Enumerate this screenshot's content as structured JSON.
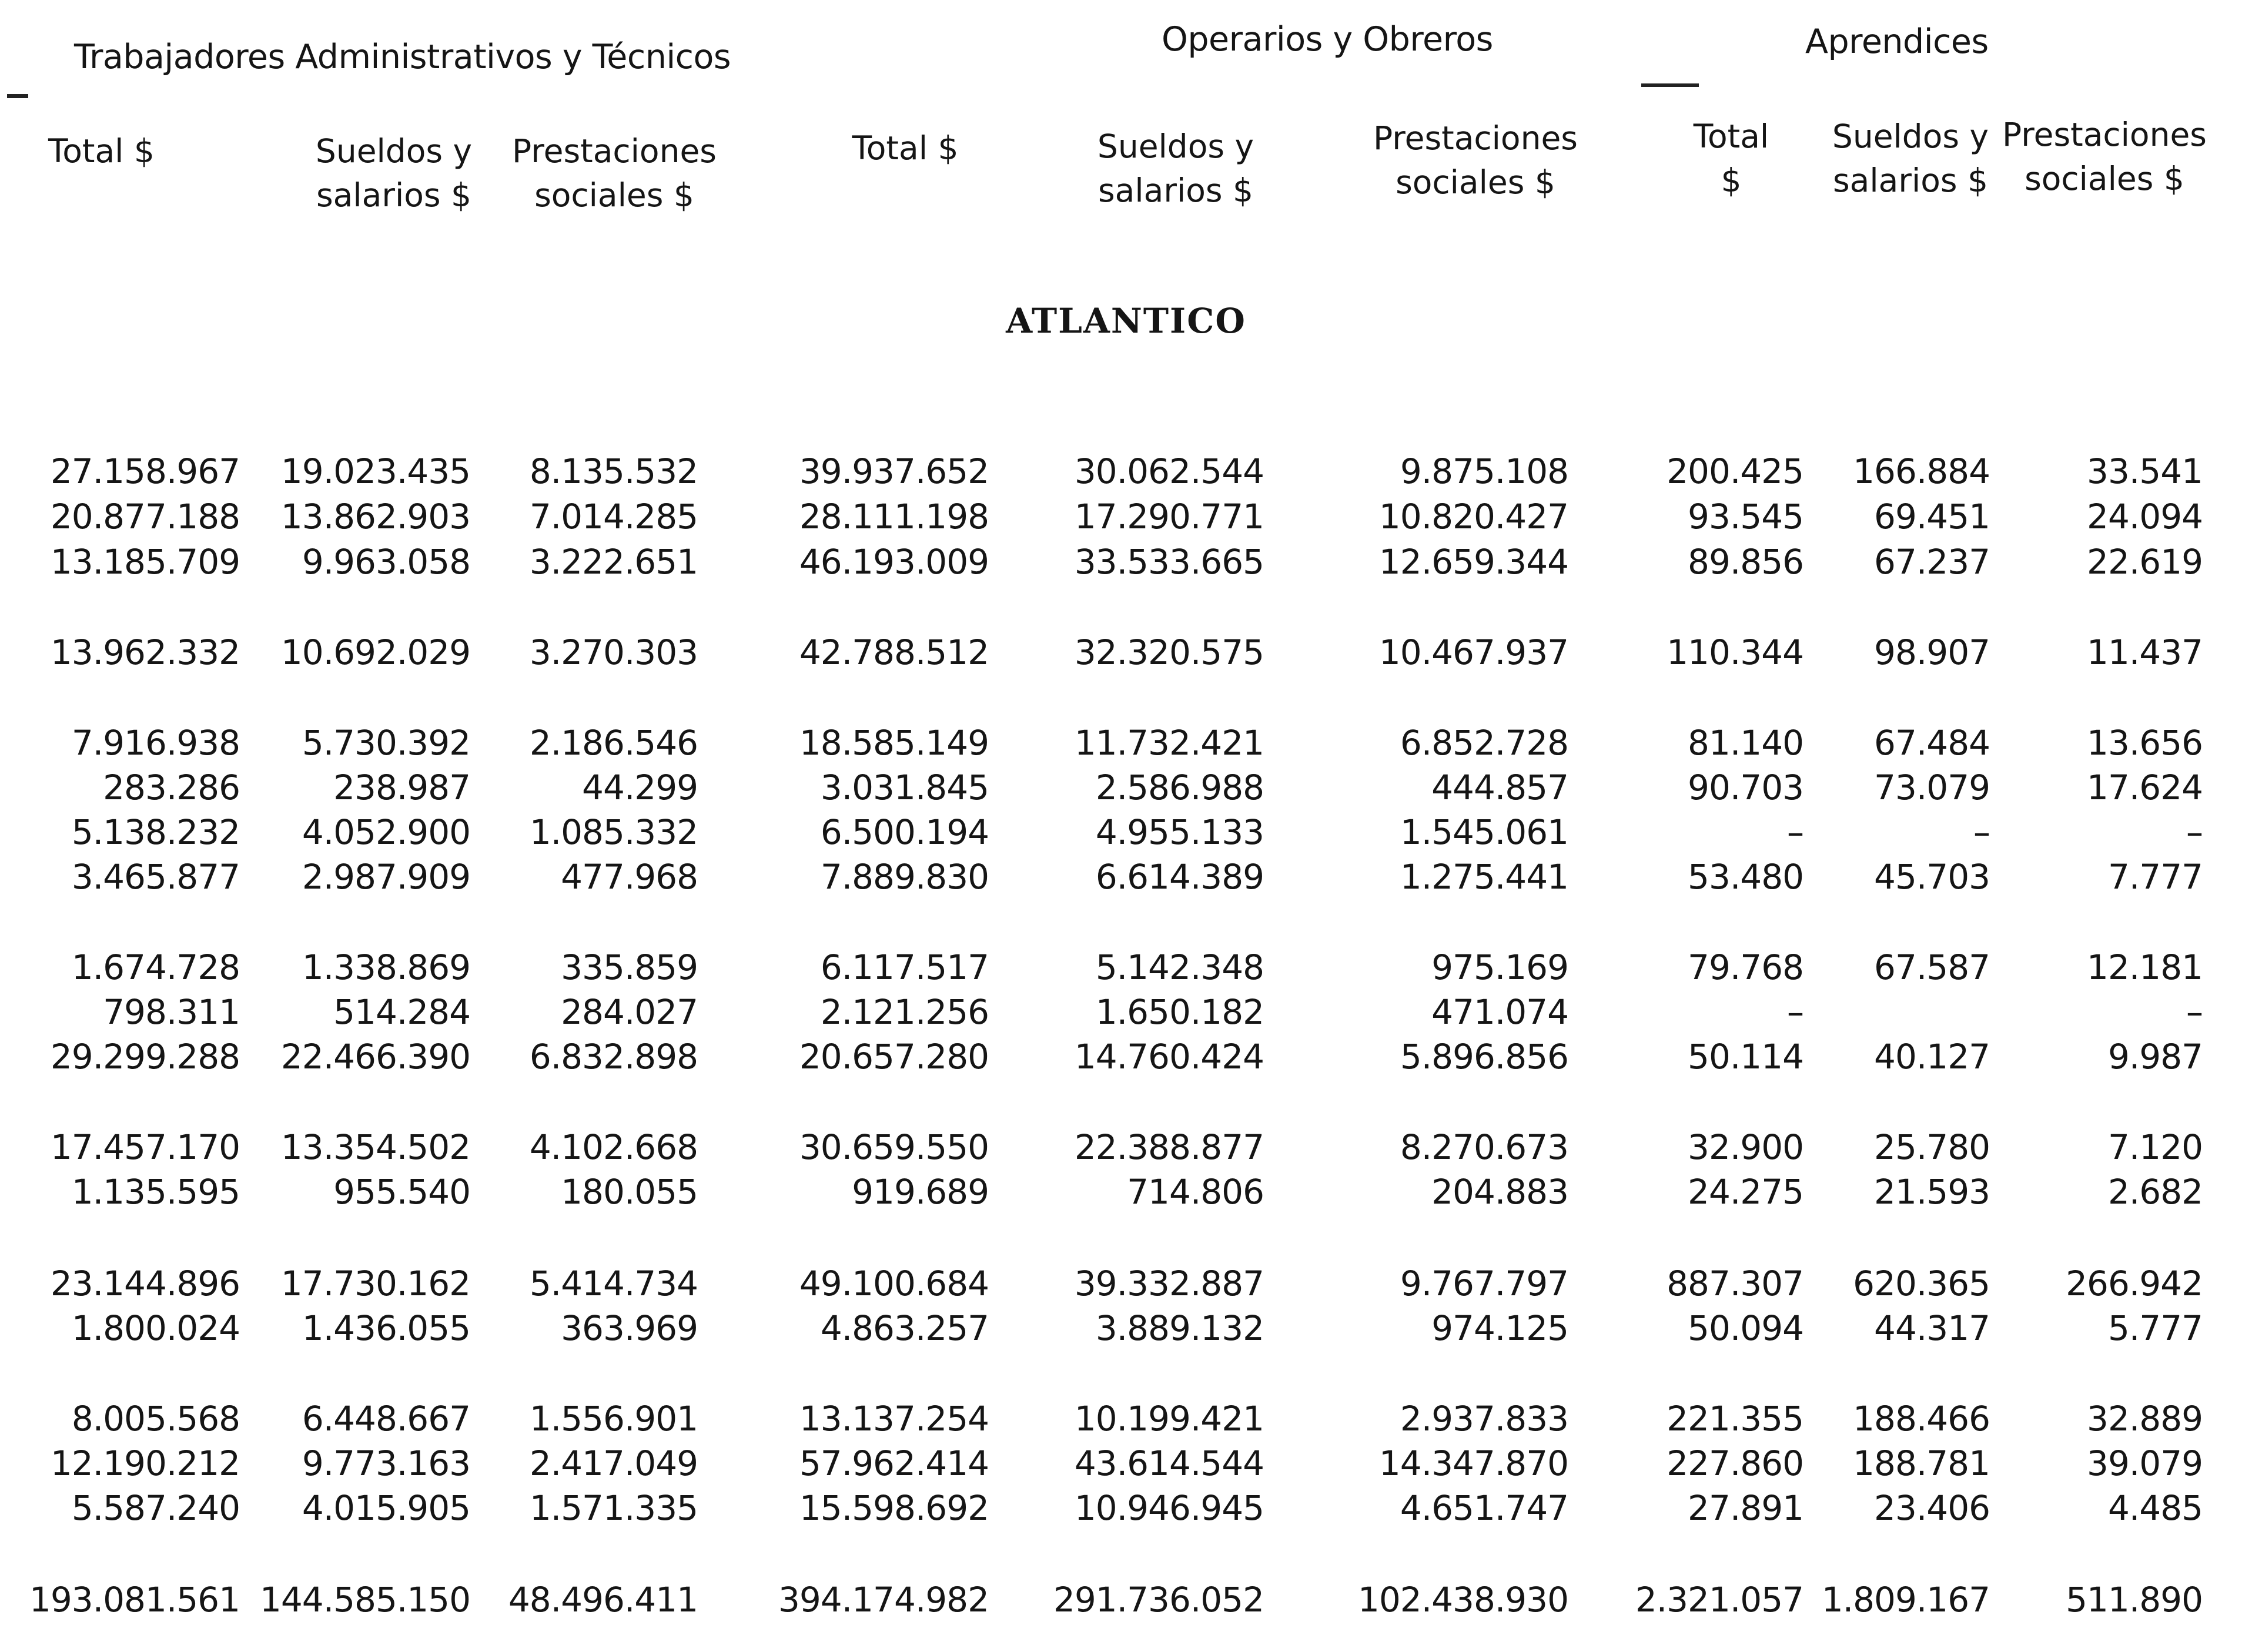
{
  "groups": {
    "admin": "Trabajadores Administrativos y Técnicos",
    "operarios": "Operarios y Obreros",
    "aprendices": "Aprendices"
  },
  "column_headers": [
    "Total $",
    "Sueldos y\nsalarios $",
    "Prestaciones\nsociales $",
    "Total $",
    "Sueldos y\nsalarios $",
    "Prestaciones\nsociales $",
    "Total\n$",
    "Sueldos y\nsalarios $",
    "Prestaciones\nsociales $"
  ],
  "section_title": "ATLANTICO",
  "rows": [
    [
      "27.158.967",
      "19.023.435",
      "8.135.532",
      "39.937.652",
      "30.062.544",
      "9.875.108",
      "200.425",
      "166.884",
      "33.541"
    ],
    [
      "20.877.188",
      "13.862.903",
      "7.014.285",
      "28.111.198",
      "17.290.771",
      "10.820.427",
      "93.545",
      "69.451",
      "24.094"
    ],
    [
      "13.185.709",
      "9.963.058",
      "3.222.651",
      "46.193.009",
      "33.533.665",
      "12.659.344",
      "89.856",
      "67.237",
      "22.619"
    ],
    [
      "13.962.332",
      "10.692.029",
      "3.270.303",
      "42.788.512",
      "32.320.575",
      "10.467.937",
      "110.344",
      "98.907",
      "11.437"
    ],
    [
      "7.916.938",
      "5.730.392",
      "2.186.546",
      "18.585.149",
      "11.732.421",
      "6.852.728",
      "81.140",
      "67.484",
      "13.656"
    ],
    [
      "283.286",
      "238.987",
      "44.299",
      "3.031.845",
      "2.586.988",
      "444.857",
      "90.703",
      "73.079",
      "17.624"
    ],
    [
      "5.138.232",
      "4.052.900",
      "1.085.332",
      "6.500.194",
      "4.955.133",
      "1.545.061",
      "–",
      "–",
      "–"
    ],
    [
      "3.465.877",
      "2.987.909",
      "477.968",
      "7.889.830",
      "6.614.389",
      "1.275.441",
      "53.480",
      "45.703",
      "7.777"
    ],
    [
      "1.674.728",
      "1.338.869",
      "335.859",
      "6.117.517",
      "5.142.348",
      "975.169",
      "79.768",
      "67.587",
      "12.181"
    ],
    [
      "798.311",
      "514.284",
      "284.027",
      "2.121.256",
      "1.650.182",
      "471.074",
      "–",
      "",
      "–"
    ],
    [
      "29.299.288",
      "22.466.390",
      "6.832.898",
      "20.657.280",
      "14.760.424",
      "5.896.856",
      "50.114",
      "40.127",
      "9.987"
    ],
    [
      "17.457.170",
      "13.354.502",
      "4.102.668",
      "30.659.550",
      "22.388.877",
      "8.270.673",
      "32.900",
      "25.780",
      "7.120"
    ],
    [
      "1.135.595",
      "955.540",
      "180.055",
      "919.689",
      "714.806",
      "204.883",
      "24.275",
      "21.593",
      "2.682"
    ],
    [
      "23.144.896",
      "17.730.162",
      "5.414.734",
      "49.100.684",
      "39.332.887",
      "9.767.797",
      "887.307",
      "620.365",
      "266.942"
    ],
    [
      "1.800.024",
      "1.436.055",
      "363.969",
      "4.863.257",
      "3.889.132",
      "974.125",
      "50.094",
      "44.317",
      "5.777"
    ],
    [
      "8.005.568",
      "6.448.667",
      "1.556.901",
      "13.137.254",
      "10.199.421",
      "2.937.833",
      "221.355",
      "188.466",
      "32.889"
    ],
    [
      "12.190.212",
      "9.773.163",
      "2.417.049",
      "57.962.414",
      "43.614.544",
      "14.347.870",
      "227.860",
      "188.781",
      "39.079"
    ],
    [
      "5.587.240",
      "4.015.905",
      "1.571.335",
      "15.598.692",
      "10.946.945",
      "4.651.747",
      "27.891",
      "23.406",
      "4.485"
    ],
    [
      "193.081.561",
      "144.585.150",
      "48.496.411",
      "394.174.982",
      "291.736.052",
      "102.438.930",
      "2.321.057",
      "1.809.167",
      "511.890"
    ]
  ]
}
